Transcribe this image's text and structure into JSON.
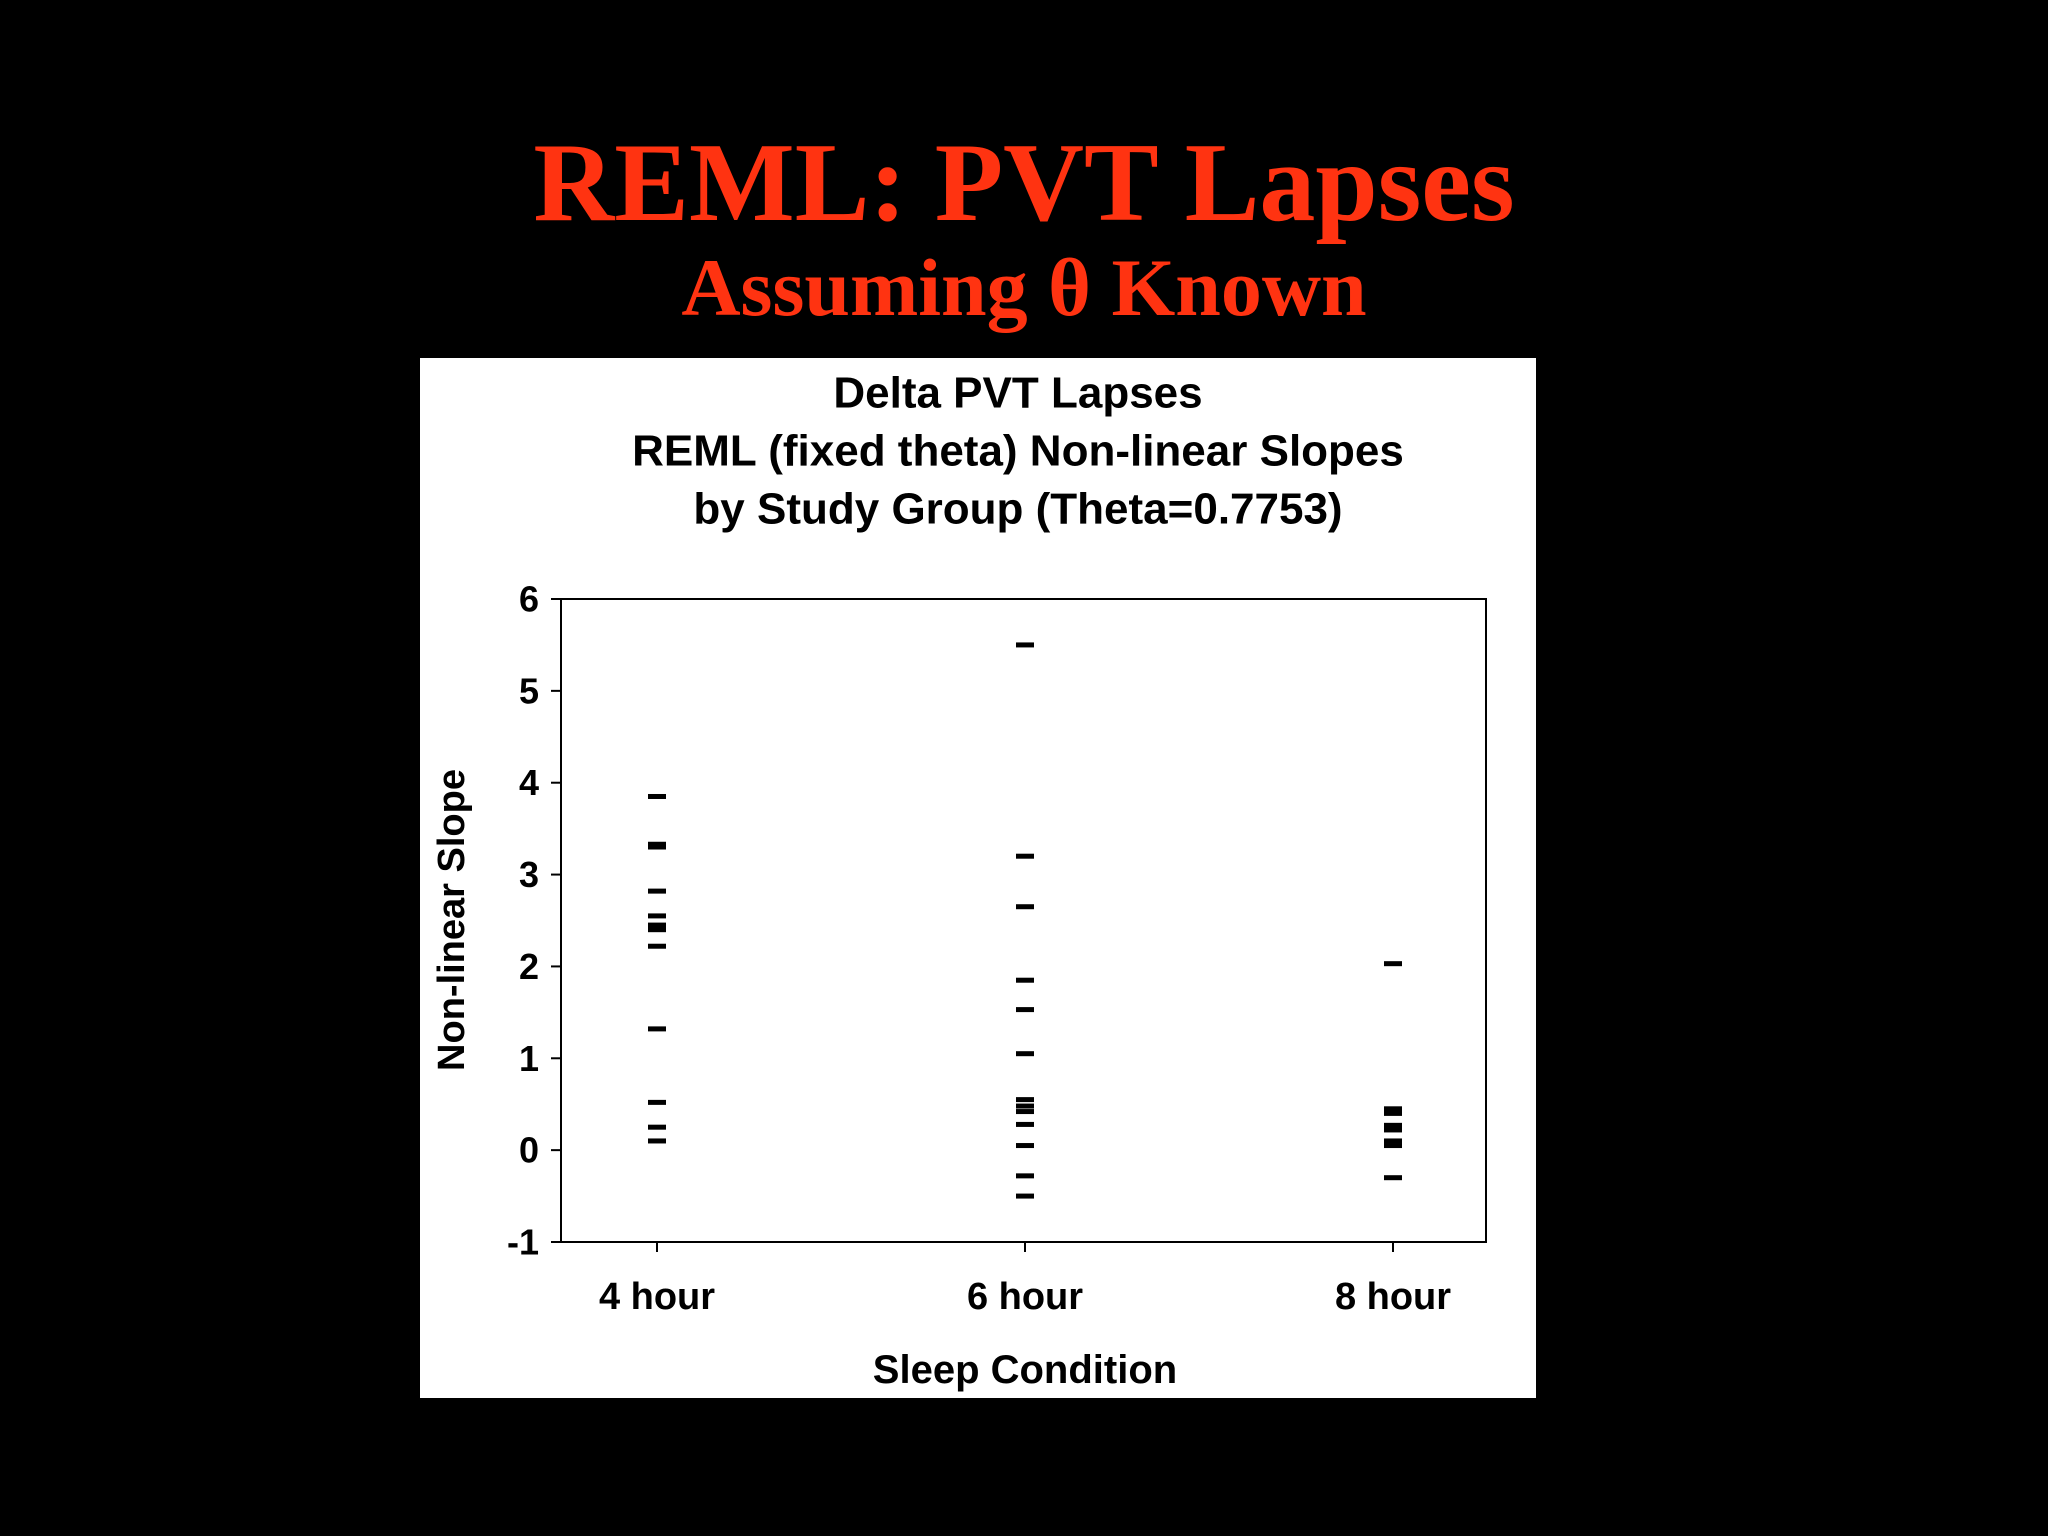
{
  "slide": {
    "title": "REML: PVT Lapses",
    "subtitle": "Assuming θ Known",
    "title_color": "#ff3311",
    "background": "#000000"
  },
  "chart_data": {
    "type": "scatter",
    "title_lines": [
      "Delta PVT Lapses",
      "REML (fixed theta) Non-linear Slopes",
      "by Study Group (Theta=0.7753)"
    ],
    "xlabel": "Sleep Condition",
    "ylabel": "Non-linear Slope",
    "categories": [
      "4 hour",
      "6 hour",
      "8 hour"
    ],
    "ylim": [
      -1,
      6
    ],
    "yticks": [
      "6",
      "5",
      "4",
      "3",
      "2",
      "1",
      "0",
      "-1"
    ],
    "ytick_values": [
      6,
      5,
      4,
      3,
      2,
      1,
      0,
      -1
    ],
    "marker": "dash",
    "grid": false,
    "series": [
      {
        "category": "4 hour",
        "values": [
          3.85,
          3.33,
          3.3,
          2.82,
          2.55,
          2.45,
          2.4,
          2.22,
          1.32,
          0.52,
          0.25,
          0.1
        ]
      },
      {
        "category": "6 hour",
        "values": [
          5.5,
          3.2,
          2.65,
          1.85,
          1.53,
          1.05,
          0.55,
          0.48,
          0.42,
          0.28,
          0.05,
          -0.28,
          -0.5
        ]
      },
      {
        "category": "8 hour",
        "values": [
          2.03,
          0.45,
          0.4,
          0.27,
          0.22,
          0.1,
          0.05,
          -0.3
        ]
      }
    ]
  }
}
